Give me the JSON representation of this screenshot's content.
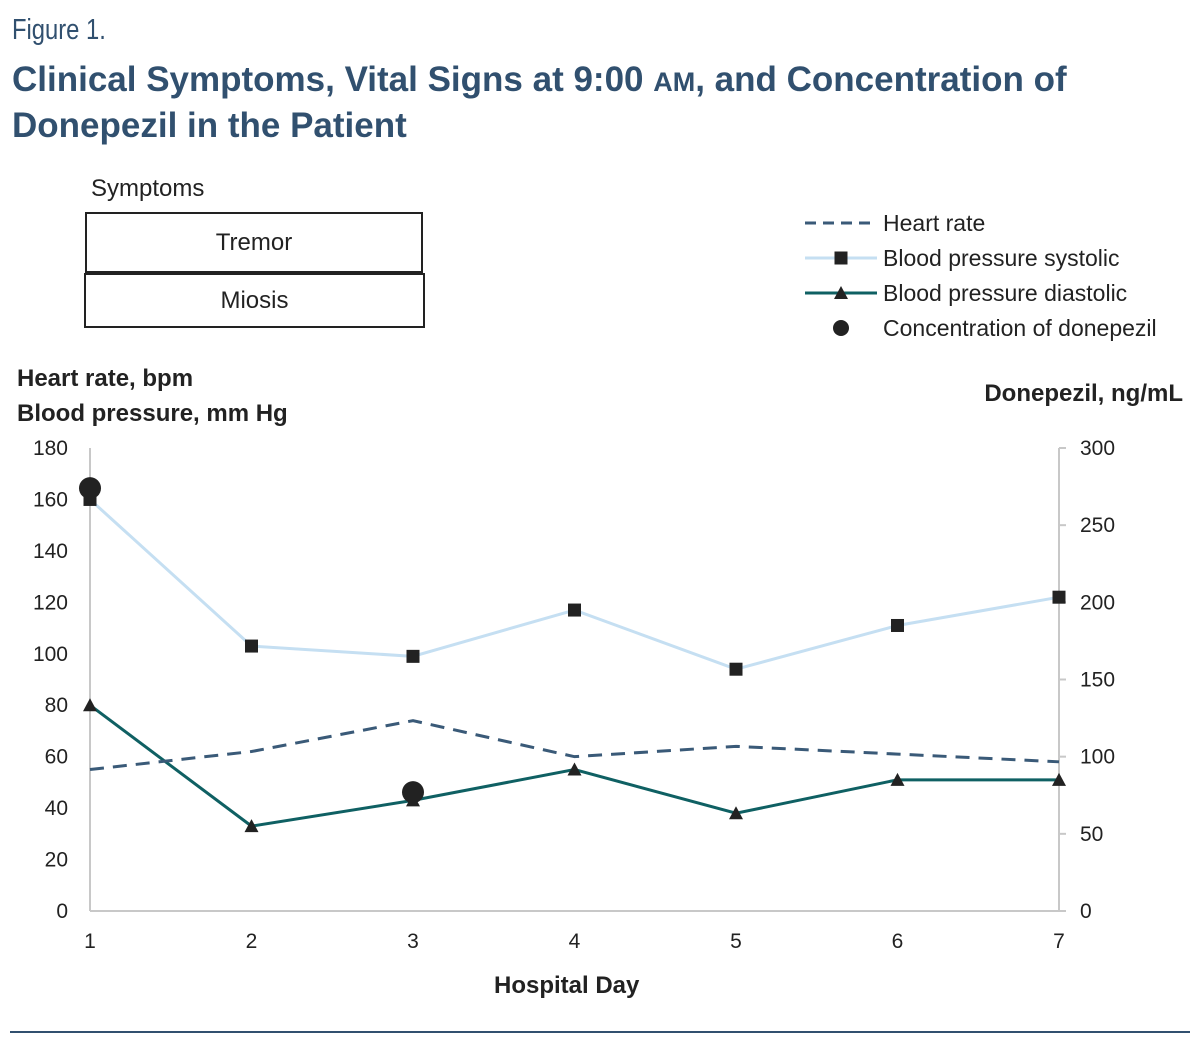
{
  "figure_label": "Figure 1.",
  "title_pre": "Clinical Symptoms, Vital Signs at 9:00 ",
  "title_am": "AM",
  "title_post": ", and Concentration of Donepezil in the Patient",
  "symptoms": {
    "label": "Symptoms",
    "items": [
      {
        "name": "Tremor",
        "days": [
          1,
          3
        ]
      },
      {
        "name": "Miosis",
        "days": [
          1,
          3
        ]
      }
    ]
  },
  "chart_data": {
    "type": "line",
    "x": [
      1,
      2,
      3,
      4,
      5,
      6,
      7
    ],
    "xlabel": "Hospital Day",
    "ylabel_left": [
      "Heart rate, bpm",
      "Blood pressure, mm Hg"
    ],
    "ylabel_right": "Donepezil, ng/mL",
    "ylim_left": [
      0,
      180
    ],
    "ylim_right": [
      0,
      300
    ],
    "yticks_left": [
      0,
      20,
      40,
      60,
      80,
      100,
      120,
      140,
      160,
      180
    ],
    "yticks_right": [
      0,
      50,
      100,
      150,
      200,
      250,
      300
    ],
    "grid": false,
    "legend_position": "top-right",
    "series": [
      {
        "name": "Heart rate",
        "axis": "left",
        "style": "dashed",
        "color": "#3a5a78",
        "values": [
          55,
          62,
          74,
          60,
          64,
          61,
          58
        ]
      },
      {
        "name": "Blood pressure systolic",
        "axis": "left",
        "marker": "square",
        "color": "#c5dff2",
        "values": [
          160,
          103,
          99,
          117,
          94,
          111,
          122
        ]
      },
      {
        "name": "Blood pressure diastolic",
        "axis": "left",
        "marker": "triangle",
        "color": "#0f6063",
        "values": [
          80,
          33,
          43,
          55,
          38,
          51,
          51
        ]
      },
      {
        "name": "Concentration of donepezil",
        "axis": "right",
        "marker": "circle",
        "color": "#222222",
        "points": [
          [
            1,
            274
          ],
          [
            3,
            77
          ]
        ]
      }
    ]
  }
}
